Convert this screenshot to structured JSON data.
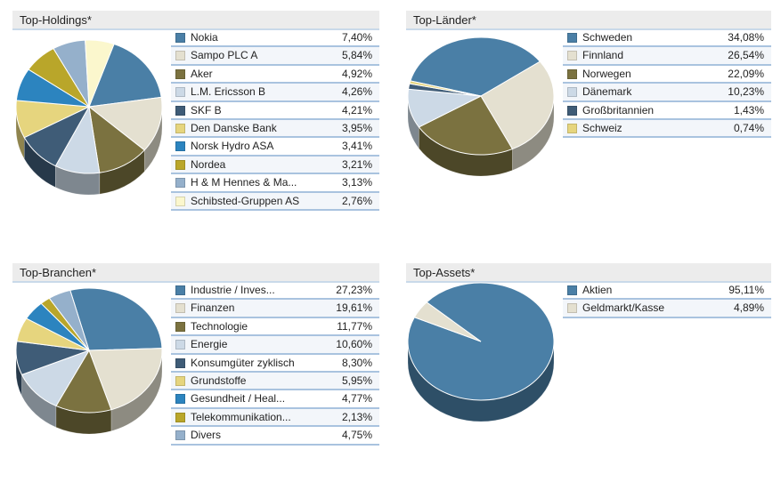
{
  "chart_data": [
    {
      "type": "pie",
      "title": "Top-Holdings*",
      "start_angle": 290,
      "categories": [
        "Nokia",
        "Sampo PLC A",
        "Aker",
        "L.M. Ericsson B",
        "SKF B",
        "Den Danske Bank",
        "Norsk Hydro ASA",
        "Nordea",
        "H & M Hennes & Ma...",
        "Schibsted-Gruppen AS"
      ],
      "value_labels": [
        "7,40%",
        "5,84%",
        "4,92%",
        "4,26%",
        "4,21%",
        "3,95%",
        "3,41%",
        "3,21%",
        "3,13%",
        "2,76%"
      ],
      "values": [
        7.4,
        5.84,
        4.92,
        4.26,
        4.21,
        3.95,
        3.41,
        3.21,
        3.13,
        2.76
      ],
      "colors": [
        "#4a7fa6",
        "#e4e0d0",
        "#7b7240",
        "#ccd9e6",
        "#3f5c77",
        "#e6d57e",
        "#2c84bf",
        "#b9a62a",
        "#95b0cb",
        "#fbf7cd"
      ]
    },
    {
      "type": "pie",
      "title": "Top-Länder*",
      "start_angle": 195,
      "categories": [
        "Schweden",
        "Finnland",
        "Norwegen",
        "Dänemark",
        "Großbritannien",
        "Schweiz"
      ],
      "value_labels": [
        "34,08%",
        "26,54%",
        "22,09%",
        "10,23%",
        "1,43%",
        "0,74%"
      ],
      "values": [
        34.08,
        26.54,
        22.09,
        10.23,
        1.43,
        0.74
      ],
      "colors": [
        "#4a7fa6",
        "#e4e0d0",
        "#7b7240",
        "#ccd9e6",
        "#3f5c77",
        "#e6d57e"
      ]
    },
    {
      "type": "pie",
      "title": "Top-Branchen*",
      "start_angle": 255,
      "categories": [
        "Industrie / Inves...",
        "Finanzen",
        "Technologie",
        "Energie",
        "Konsumgüter zyklisch",
        "Grundstoffe",
        "Gesundheit / Heal...",
        "Telekommunikation...",
        "Divers"
      ],
      "value_labels": [
        "27,23%",
        "19,61%",
        "11,77%",
        "10,60%",
        "8,30%",
        "5,95%",
        "4,77%",
        "2,13%",
        "4,75%"
      ],
      "values": [
        27.23,
        19.61,
        11.77,
        10.6,
        8.3,
        5.95,
        4.77,
        2.13,
        4.75
      ],
      "colors": [
        "#4a7fa6",
        "#e4e0d0",
        "#7b7240",
        "#ccd9e6",
        "#3f5c77",
        "#e6d57e",
        "#2c84bf",
        "#b9a62a",
        "#95b0cb"
      ]
    },
    {
      "type": "pie",
      "title": "Top-Assets*",
      "start_angle": 222,
      "categories": [
        "Aktien",
        "Geldmarkt/Kasse"
      ],
      "value_labels": [
        "95,11%",
        "4,89%"
      ],
      "values": [
        95.11,
        4.89
      ],
      "colors": [
        "#4a7fa6",
        "#e4e0d0"
      ]
    }
  ]
}
